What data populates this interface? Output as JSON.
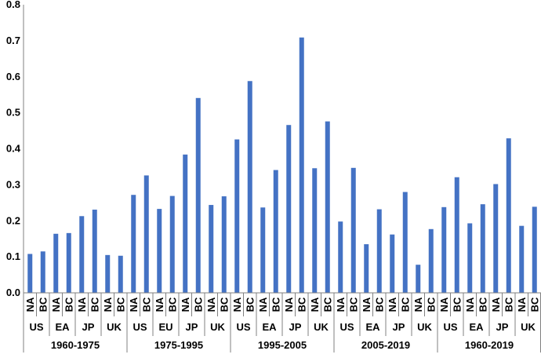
{
  "chart_data": {
    "type": "bar",
    "title": "",
    "xlabel": "",
    "ylabel": "",
    "ylim": [
      0,
      0.8
    ],
    "yticks": [
      "0.0",
      "0.1",
      "0.2",
      "0.3",
      "0.4",
      "0.5",
      "0.6",
      "0.7",
      "0.8"
    ],
    "grid": false,
    "legend": "none",
    "bar_color": "#4472C4",
    "axis_color": "#808080",
    "groups": [
      {
        "period": "1960-1975",
        "regions": [
          {
            "region": "US",
            "bars": [
              {
                "label": "NA",
                "value": 0.108
              },
              {
                "label": "BC",
                "value": 0.115
              }
            ]
          },
          {
            "region": "EA",
            "bars": [
              {
                "label": "NA",
                "value": 0.164
              },
              {
                "label": "BC",
                "value": 0.166
              }
            ]
          },
          {
            "region": "JP",
            "bars": [
              {
                "label": "NA",
                "value": 0.213
              },
              {
                "label": "BC",
                "value": 0.231
              }
            ]
          },
          {
            "region": "UK",
            "bars": [
              {
                "label": "NA",
                "value": 0.105
              },
              {
                "label": "BC",
                "value": 0.103
              }
            ]
          }
        ]
      },
      {
        "period": "1975-1995",
        "regions": [
          {
            "region": "US",
            "bars": [
              {
                "label": "NA",
                "value": 0.272
              },
              {
                "label": "BC",
                "value": 0.326
              }
            ]
          },
          {
            "region": "EU",
            "bars": [
              {
                "label": "NA",
                "value": 0.233
              },
              {
                "label": "BC",
                "value": 0.269
              }
            ]
          },
          {
            "region": "JP",
            "bars": [
              {
                "label": "NA",
                "value": 0.384
              },
              {
                "label": "BC",
                "value": 0.541
              }
            ]
          },
          {
            "region": "UK",
            "bars": [
              {
                "label": "NA",
                "value": 0.244
              },
              {
                "label": "BC",
                "value": 0.268
              }
            ]
          }
        ]
      },
      {
        "period": "1995-2005",
        "regions": [
          {
            "region": "US",
            "bars": [
              {
                "label": "NA",
                "value": 0.426
              },
              {
                "label": "BC",
                "value": 0.588
              }
            ]
          },
          {
            "region": "EA",
            "bars": [
              {
                "label": "NA",
                "value": 0.237
              },
              {
                "label": "BC",
                "value": 0.341
              }
            ]
          },
          {
            "region": "JP",
            "bars": [
              {
                "label": "NA",
                "value": 0.466
              },
              {
                "label": "BC",
                "value": 0.709
              }
            ]
          },
          {
            "region": "UK",
            "bars": [
              {
                "label": "NA",
                "value": 0.346
              },
              {
                "label": "BC",
                "value": 0.476
              }
            ]
          }
        ]
      },
      {
        "period": "2005-2019",
        "regions": [
          {
            "region": "US",
            "bars": [
              {
                "label": "NA",
                "value": 0.198
              },
              {
                "label": "BC",
                "value": 0.347
              }
            ]
          },
          {
            "region": "EA",
            "bars": [
              {
                "label": "NA",
                "value": 0.135
              },
              {
                "label": "BC",
                "value": 0.232
              }
            ]
          },
          {
            "region": "JP",
            "bars": [
              {
                "label": "NA",
                "value": 0.162
              },
              {
                "label": "BC",
                "value": 0.28
              }
            ]
          },
          {
            "region": "UK",
            "bars": [
              {
                "label": "NA",
                "value": 0.078
              },
              {
                "label": "BC",
                "value": 0.177
              }
            ]
          }
        ]
      },
      {
        "period": "1960-2019",
        "regions": [
          {
            "region": "US",
            "bars": [
              {
                "label": "NA",
                "value": 0.238
              },
              {
                "label": "BC",
                "value": 0.321
              }
            ]
          },
          {
            "region": "EA",
            "bars": [
              {
                "label": "NA",
                "value": 0.193
              },
              {
                "label": "BC",
                "value": 0.246
              }
            ]
          },
          {
            "region": "JP",
            "bars": [
              {
                "label": "NA",
                "value": 0.302
              },
              {
                "label": "BC",
                "value": 0.429
              }
            ]
          },
          {
            "region": "UK",
            "bars": [
              {
                "label": "NA",
                "value": 0.186
              },
              {
                "label": "BC",
                "value": 0.239
              }
            ]
          }
        ]
      }
    ]
  }
}
